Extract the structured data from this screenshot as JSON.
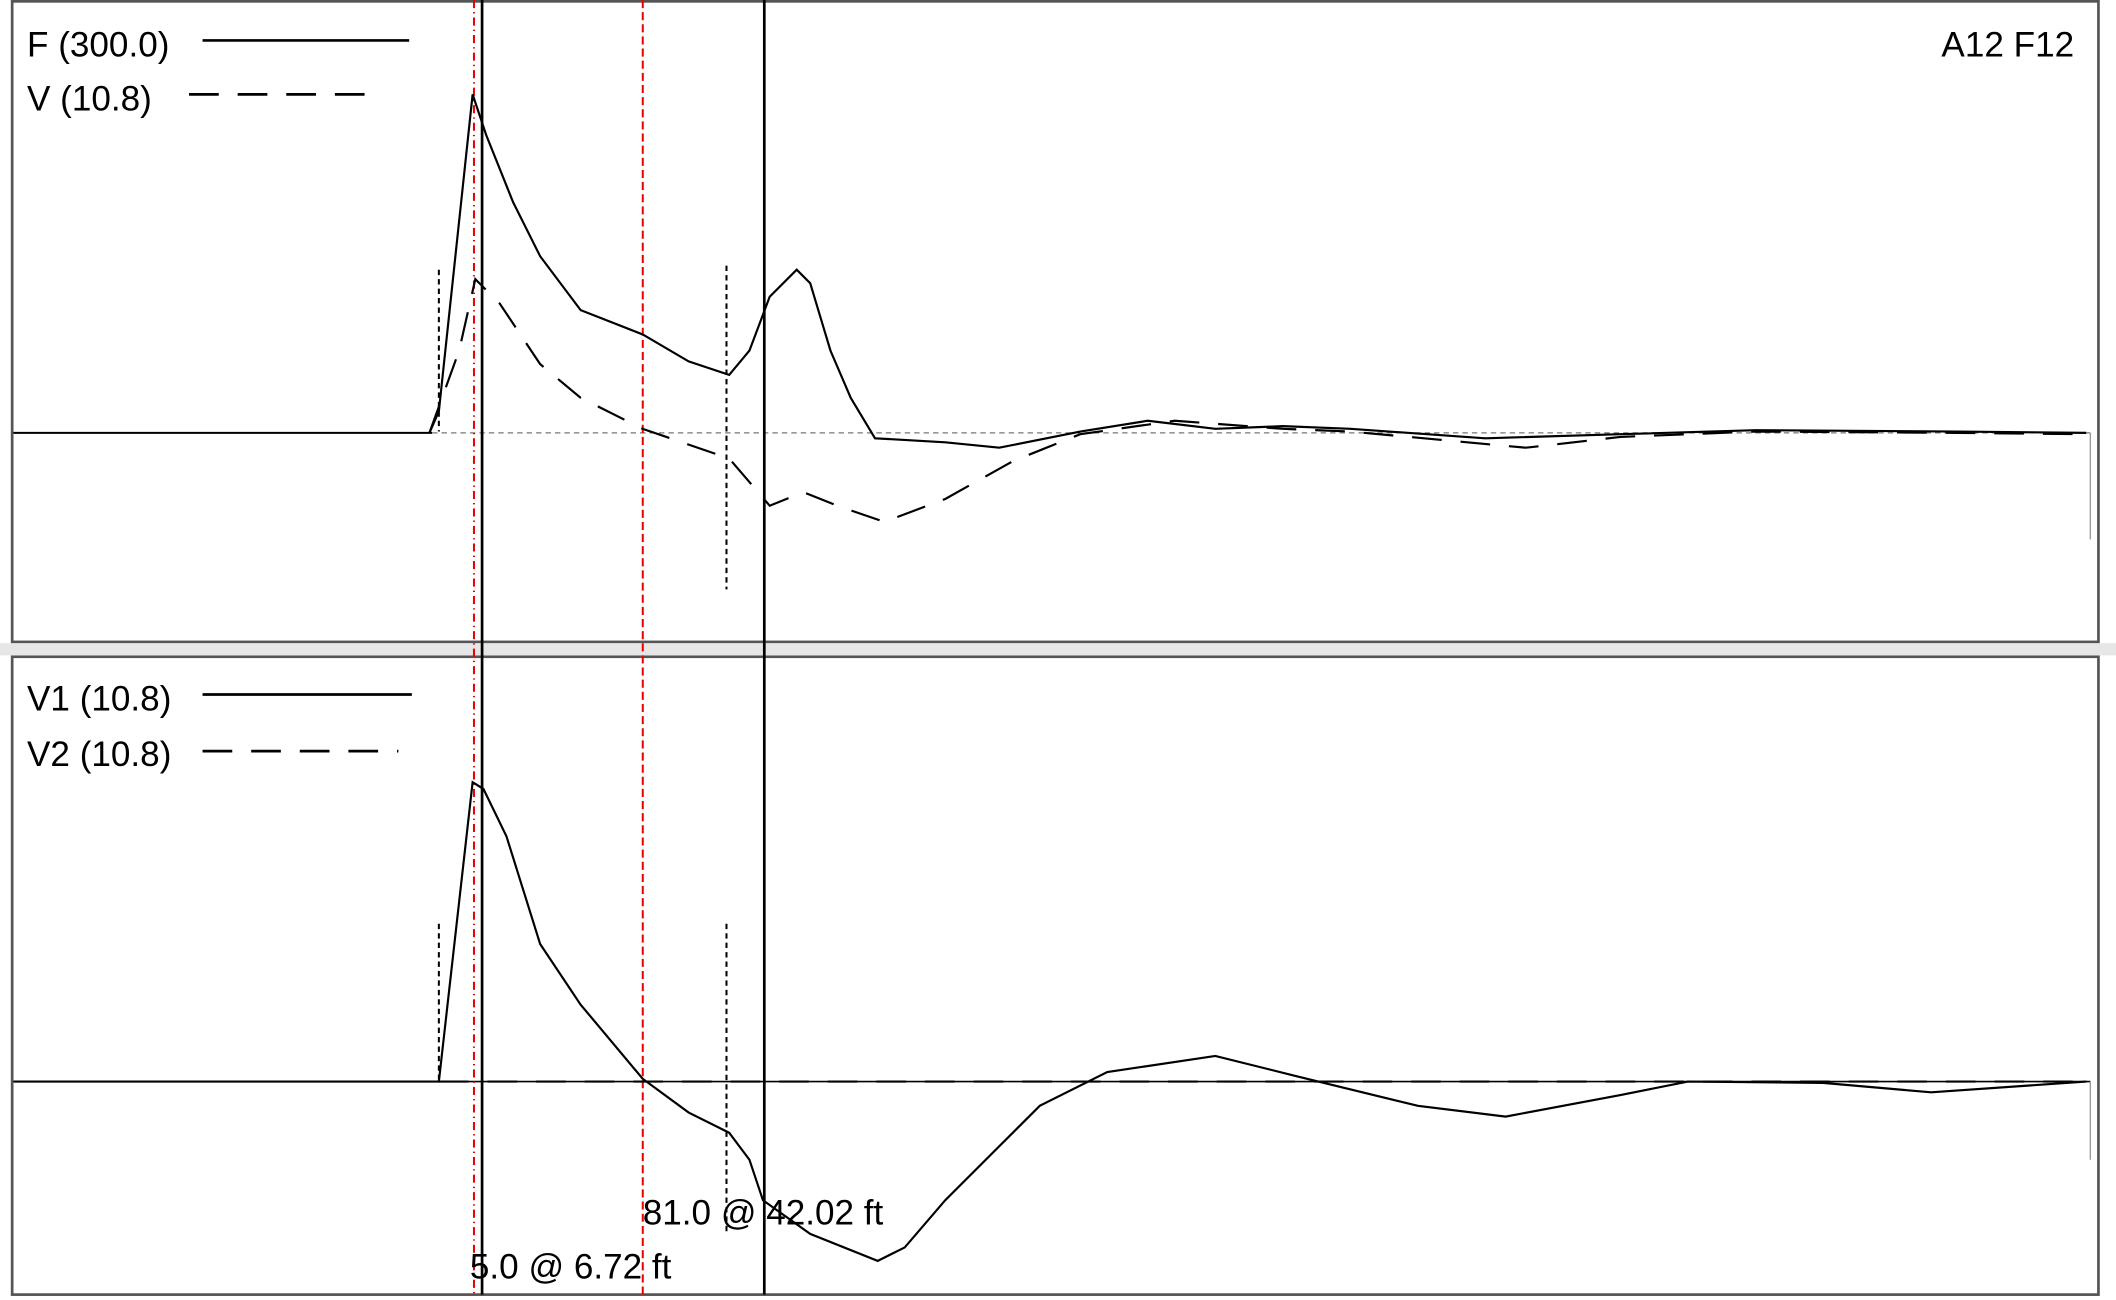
{
  "top_panel": {
    "legend": [
      "F (300.0)",
      "V (10.8)"
    ],
    "id_label": "A12 F12"
  },
  "bottom_panel": {
    "legend": [
      "V1 (10.8)",
      "V2 (10.8)"
    ],
    "annotations": [
      "81.0 @ 42.02 ft",
      "5.0 @ 6.72 ft"
    ]
  }
}
